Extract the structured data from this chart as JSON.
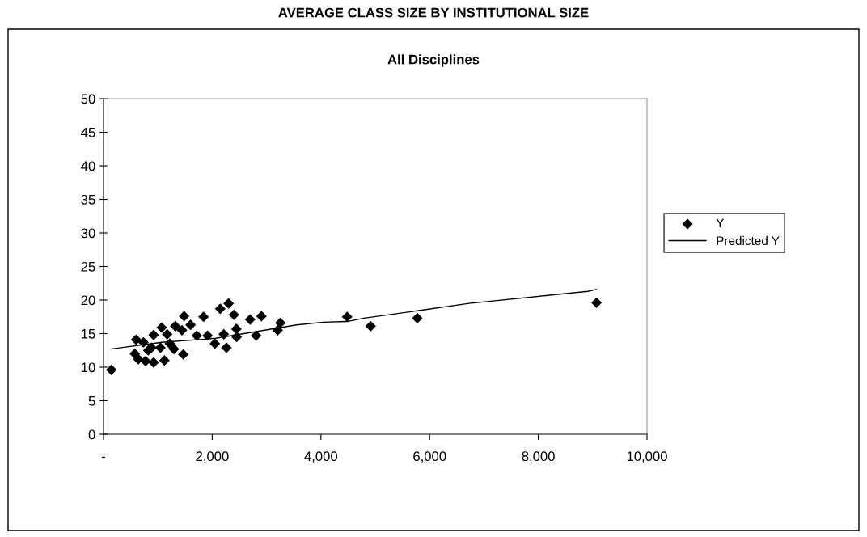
{
  "chart_data": {
    "type": "scatter",
    "title": "AVERAGE CLASS SIZE BY INSTITUTIONAL SIZE",
    "subtitle": "All Disciplines",
    "xlim": [
      0,
      10000
    ],
    "xticks": [
      {
        "value": 0,
        "label": "-"
      },
      {
        "value": 2000,
        "label": "2,000"
      },
      {
        "value": 4000,
        "label": "4,000"
      },
      {
        "value": 6000,
        "label": "6,000"
      },
      {
        "value": 8000,
        "label": "8,000"
      },
      {
        "value": 10000,
        "label": "10,000"
      }
    ],
    "ylim": [
      0,
      50
    ],
    "yticks": [
      0,
      5,
      10,
      15,
      20,
      25,
      30,
      35,
      40,
      45,
      50
    ],
    "grid": false,
    "legend": "right",
    "series": [
      {
        "name": "Y",
        "marker": "diamond",
        "color": "#000000",
        "x": [
          144,
          600,
          576,
          640,
          734,
          823,
          774,
          922,
          883,
          922,
          1047,
          1071,
          1121,
          1171,
          1220,
          1295,
          1320,
          1443,
          1468,
          1483,
          1602,
          1716,
          1841,
          1915,
          2049,
          2148,
          2213,
          2262,
          2302,
          2400,
          2445,
          2450,
          2698,
          2808,
          2906,
          3204,
          3254,
          4483,
          4915,
          5773,
          9072
        ],
        "values": [
          9.6,
          14.1,
          12.0,
          11.2,
          13.7,
          12.5,
          10.9,
          14.8,
          12.9,
          10.7,
          12.9,
          15.9,
          11.0,
          14.9,
          13.5,
          12.7,
          16.1,
          15.5,
          11.9,
          17.6,
          16.3,
          14.7,
          17.5,
          14.7,
          13.5,
          18.7,
          14.9,
          12.9,
          19.5,
          17.8,
          15.7,
          14.5,
          17.1,
          14.7,
          17.6,
          15.5,
          16.6,
          17.5,
          16.1,
          17.3,
          19.6
        ]
      },
      {
        "name": "Predicted Y",
        "type": "line",
        "marker": "none",
        "line_style": "solid",
        "color": "#000000",
        "x": [
          130,
          1071,
          2064,
          3552,
          4047,
          4483,
          4795,
          5773,
          6726,
          8909,
          9072
        ],
        "values": [
          12.7,
          13.7,
          14.3,
          16.3,
          16.7,
          16.8,
          17.3,
          18.4,
          19.5,
          21.3,
          21.6
        ]
      }
    ]
  }
}
